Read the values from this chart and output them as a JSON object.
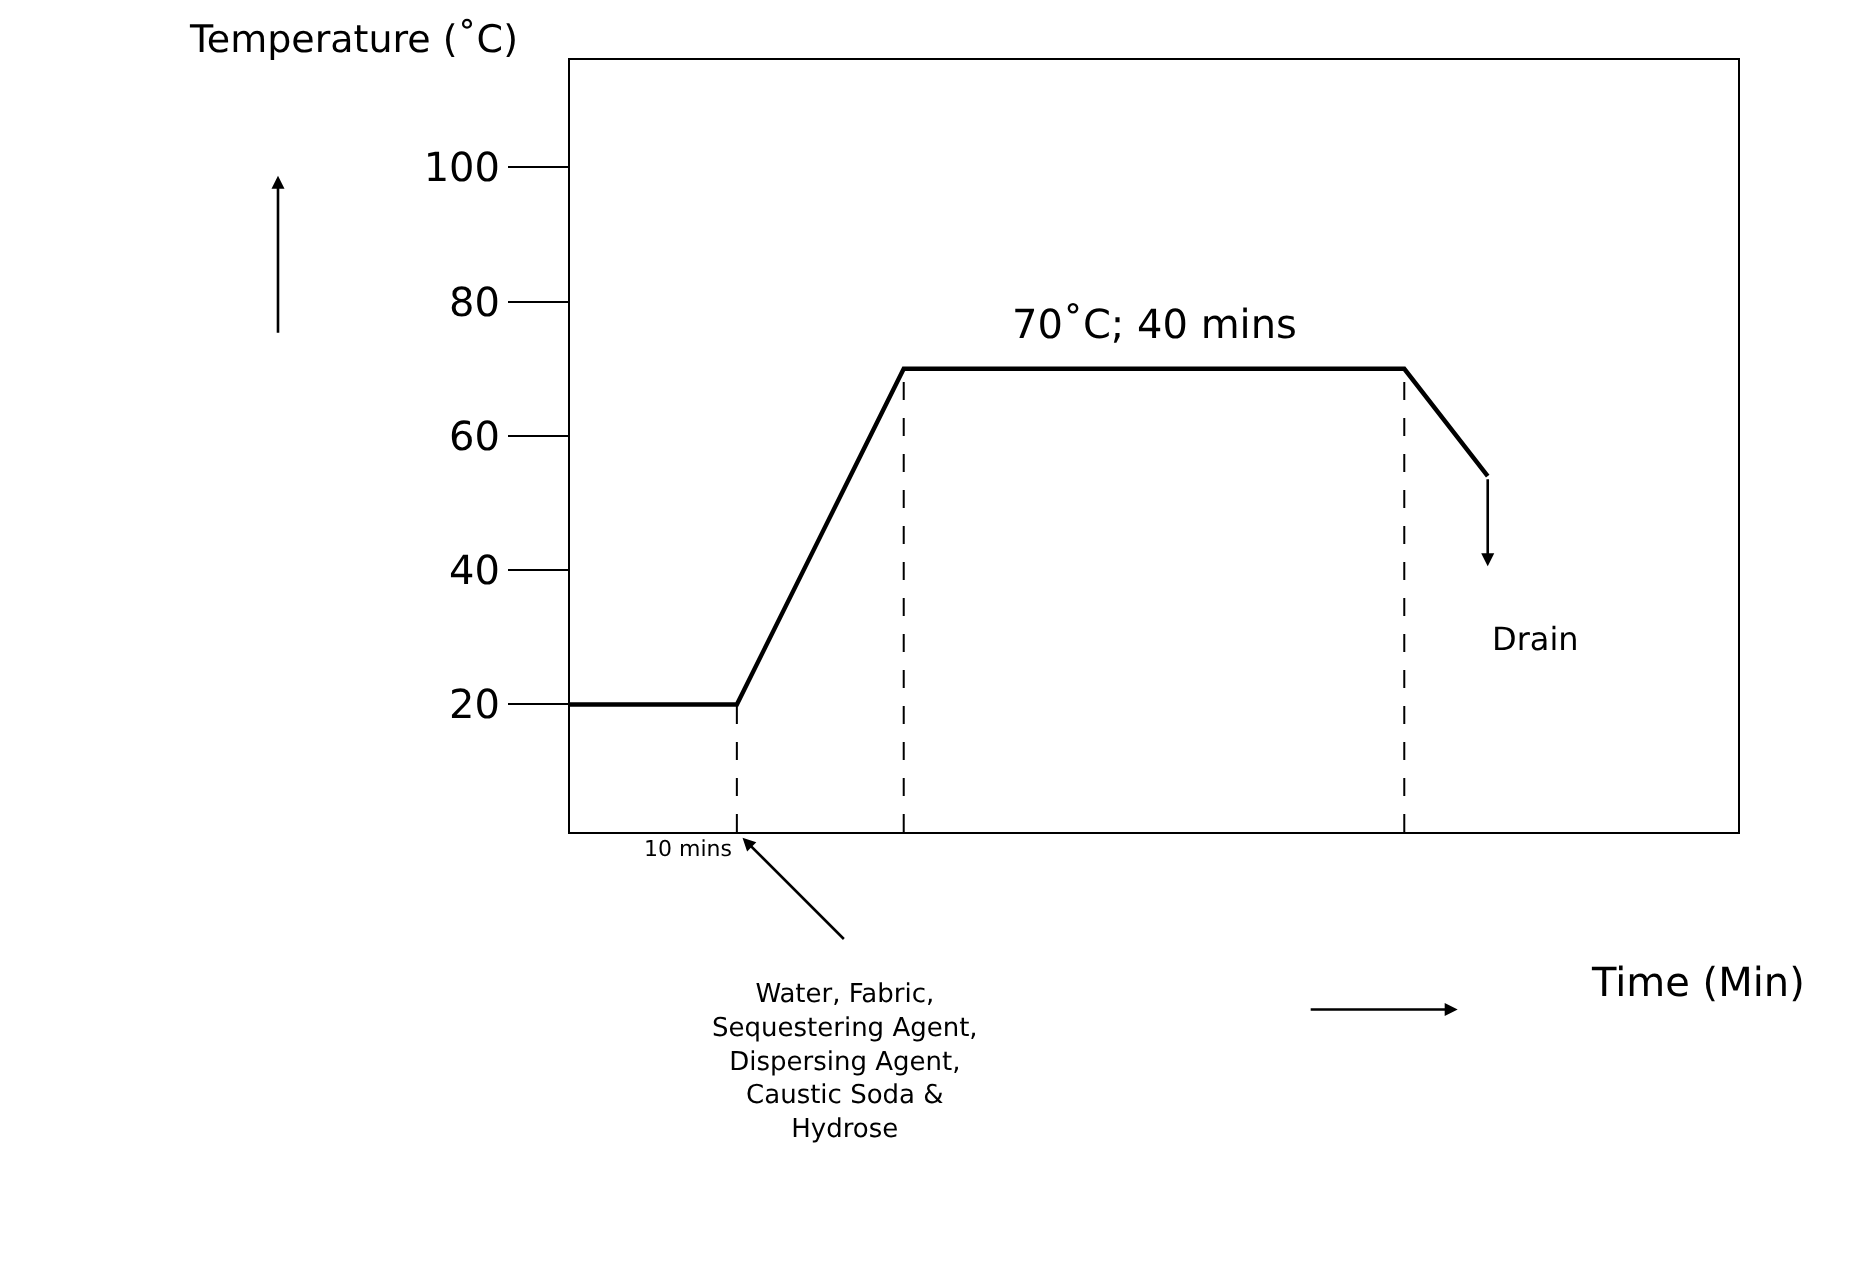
{
  "chart_data": {
    "type": "line",
    "ylabel": "Temperature (˚C)",
    "xlabel": "Time (Min)",
    "categories": [
      null,
      null,
      null,
      null,
      null,
      null,
      null,
      null,
      null,
      null,
      null,
      null,
      null,
      null,
      null
    ],
    "series": [
      {
        "color": "#000000",
        "values": [
          20,
          20,
          20,
          45,
          70,
          70,
          70,
          70,
          70,
          70,
          70,
          54,
          null,
          null,
          null
        ]
      }
    ],
    "ylim": [
      1,
      116
    ],
    "yticks": [
      20,
      40,
      60,
      80,
      100
    ],
    "marker": "none",
    "line_style": "solid",
    "annotations": [
      "10 mins",
      "70˚C; 40 mins",
      "Drain",
      "Water, Fabric,\nSequestering Agent,\nDispersing Agent,\nCaustic Soda &\nHydrose"
    ]
  }
}
